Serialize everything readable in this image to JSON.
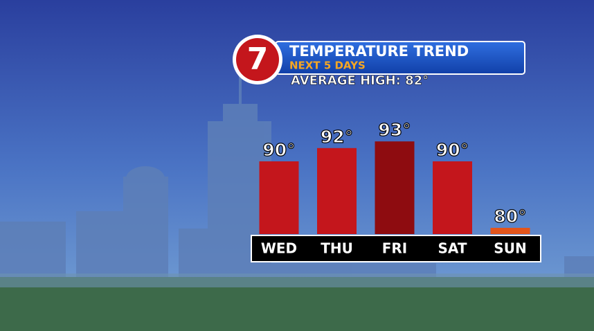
{
  "chart_data": {
    "type": "bar",
    "logo": "7",
    "title": "TEMPERATURE TREND",
    "subtitle": "NEXT 5 DAYS",
    "annotation": "AVERAGE HIGH: 82°",
    "categories": [
      "WED",
      "THU",
      "FRI",
      "SAT",
      "SUN"
    ],
    "values": [
      90,
      92,
      93,
      90,
      80
    ],
    "value_labels": [
      "90°",
      "92°",
      "93°",
      "90°",
      "80°"
    ],
    "colors": [
      "#c4161c",
      "#c4161c",
      "#8e0c10",
      "#c4161c",
      "#e2551c"
    ]
  }
}
